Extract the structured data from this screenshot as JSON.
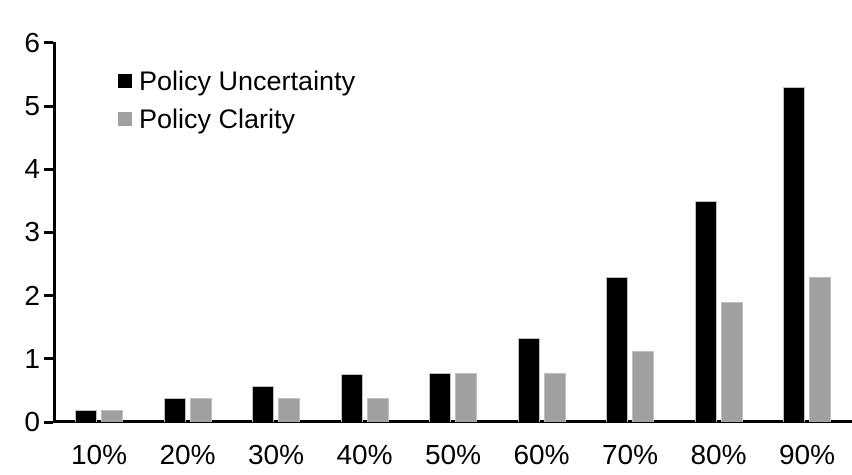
{
  "chart_data": {
    "type": "bar",
    "title": "",
    "xlabel": "",
    "ylabel": "",
    "categories": [
      "10%",
      "20%",
      "30%",
      "40%",
      "50%",
      "60%",
      "70%",
      "80%",
      "90%"
    ],
    "series": [
      {
        "name": "Policy Uncertainty",
        "color": "#000000",
        "values": [
          0.19,
          0.38,
          0.57,
          0.76,
          0.78,
          1.33,
          2.3,
          3.5,
          5.3
        ]
      },
      {
        "name": "Policy Clarity",
        "color": "#a0a0a0",
        "values": [
          0.19,
          0.38,
          0.38,
          0.38,
          0.77,
          0.77,
          1.13,
          1.9,
          2.3
        ]
      }
    ],
    "ylim": [
      0,
      6
    ],
    "yticks": [
      "0",
      "1",
      "2",
      "3",
      "4",
      "5",
      "6"
    ],
    "grid": false,
    "legend_position": "top-left-inside"
  },
  "legend": {
    "items": [
      "Policy Uncertainty",
      "Policy Clarity"
    ]
  },
  "colors": {
    "background": "#ffffff",
    "axis": "#000000",
    "bar_border": "#bfbfbf",
    "text": "#000000"
  }
}
